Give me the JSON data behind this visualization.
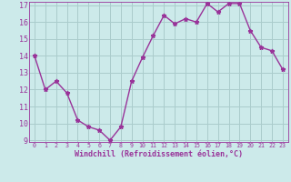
{
  "x": [
    0,
    1,
    2,
    3,
    4,
    5,
    6,
    7,
    8,
    9,
    10,
    11,
    12,
    13,
    14,
    15,
    16,
    17,
    18,
    19,
    20,
    21,
    22,
    23
  ],
  "y": [
    14.0,
    12.0,
    12.5,
    11.8,
    10.2,
    9.8,
    9.6,
    9.0,
    9.8,
    12.5,
    13.9,
    15.2,
    16.4,
    15.9,
    16.2,
    16.0,
    17.1,
    16.6,
    17.1,
    17.1,
    15.5,
    14.5,
    14.3,
    13.2
  ],
  "line_color": "#993399",
  "marker": "*",
  "bg_color": "#cceaea",
  "grid_color": "#aacccc",
  "xlabel": "Windchill (Refroidissement éolien,°C)",
  "xlabel_color": "#993399",
  "tick_color": "#993399",
  "ylim": [
    9,
    17
  ],
  "yticks": [
    9,
    10,
    11,
    12,
    13,
    14,
    15,
    16,
    17
  ],
  "font_family": "monospace",
  "markersize": 3.5,
  "linewidth": 1.0
}
